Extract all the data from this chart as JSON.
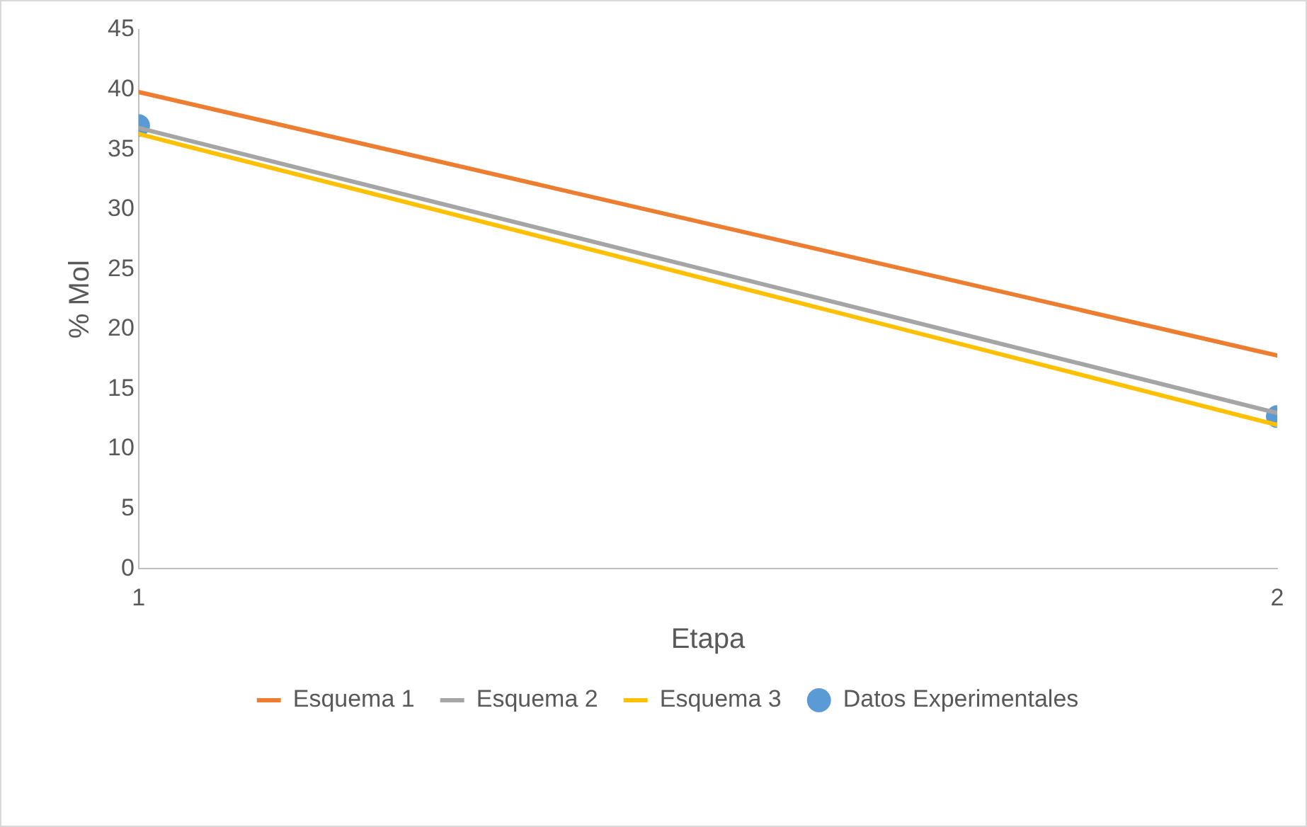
{
  "chart_data": {
    "type": "line",
    "xlabel": "Etapa",
    "ylabel": "% Mol",
    "x": [
      1,
      2
    ],
    "xlim": [
      1,
      2
    ],
    "xticks": [
      1,
      2
    ],
    "ylim": [
      0,
      45
    ],
    "yticks": [
      0,
      5,
      10,
      15,
      20,
      25,
      30,
      35,
      40,
      45
    ],
    "grid": false,
    "legend": "bottom",
    "marker": "none",
    "line_style": "solid",
    "series": [
      {
        "name": "Esquema 1",
        "color": "#ed7d31",
        "values": [
          39.8,
          17.8
        ]
      },
      {
        "name": "Esquema 2",
        "color": "#a5a5a5",
        "values": [
          36.8,
          13.0
        ]
      },
      {
        "name": "Esquema 3",
        "color": "#ffc000",
        "values": [
          36.3,
          12.0
        ]
      },
      {
        "name": "Datos Experimentales",
        "type": "scatter",
        "color": "#5b9bd5",
        "marker": "circle",
        "values": [
          37.0,
          12.7
        ]
      }
    ]
  }
}
